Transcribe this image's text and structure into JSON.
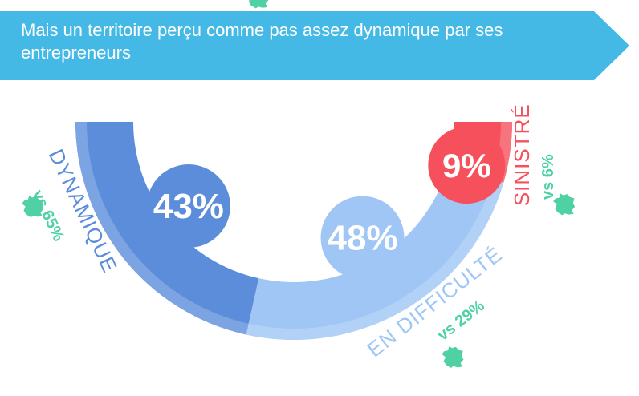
{
  "header": {
    "title": "Mais un territoire perçu comme pas assez dynamique par ses entrepreneurs",
    "color": "#45b9e6"
  },
  "chart_data": {
    "type": "pie",
    "title": "Mais un territoire perçu comme pas assez dynamique par ses entrepreneurs",
    "slices": [
      {
        "label": "DYNAMIQUE",
        "value": 43,
        "value_label": "43%",
        "comparison": "vs 65%",
        "color": "#5b8ddb"
      },
      {
        "label": "EN DIFFICULTÉ",
        "value": 48,
        "value_label": "48%",
        "comparison": "vs 29%",
        "color": "#9fc6f5"
      },
      {
        "label": "SINISTRÉ",
        "value": 9,
        "value_label": "9%",
        "comparison": "vs 6%",
        "color": "#f5505c"
      }
    ],
    "comparison_color": "#4fd1a4",
    "comparison_icon": "france-map-icon"
  }
}
